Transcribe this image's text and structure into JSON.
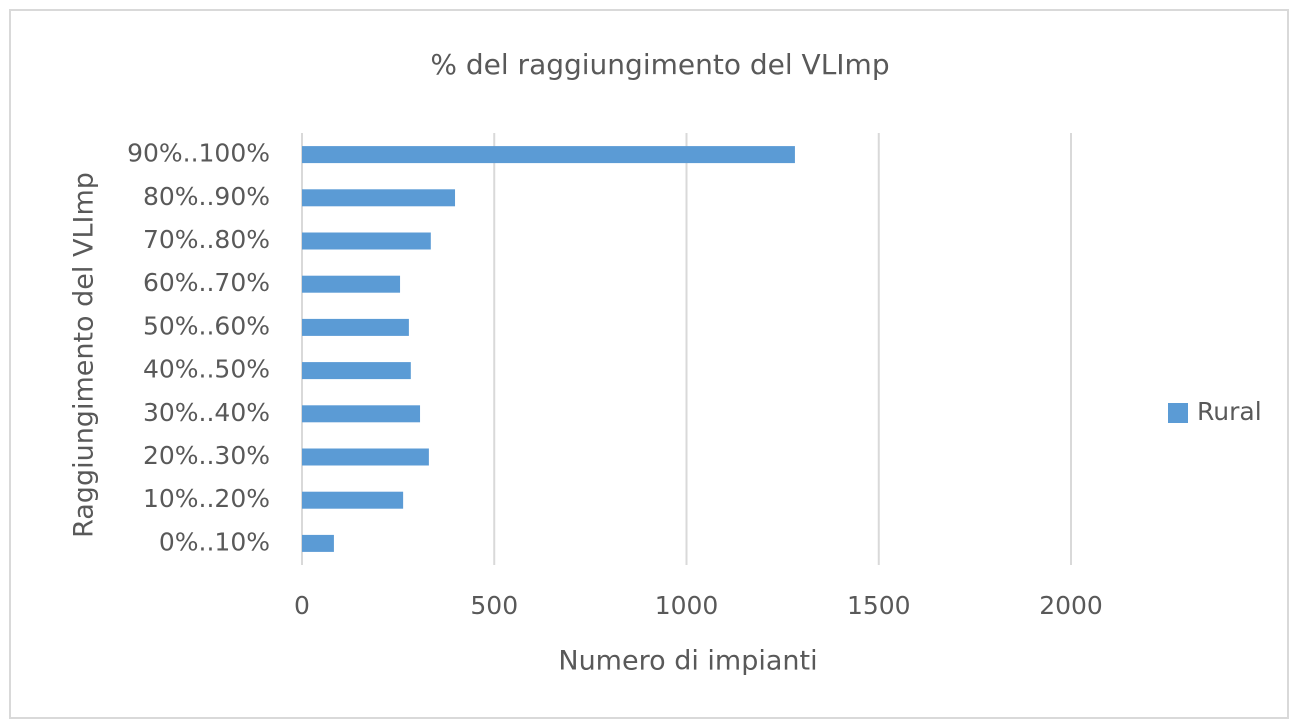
{
  "chart_data": {
    "type": "bar",
    "orientation": "horizontal",
    "title": "% del raggiungimento del VLImp",
    "x_label": "Numero di impianti",
    "y_label": "Raggiungimento del VLImp",
    "categories": [
      "0%..10%",
      "10%..20%",
      "20%..30%",
      "30%..40%",
      "40%..50%",
      "50%..60%",
      "60%..70%",
      "70%..80%",
      "80%..90%",
      "90%..100%"
    ],
    "series": [
      {
        "name": "Rural",
        "color": "#5b9bd5",
        "values": [
          83,
          263,
          330,
          307,
          283,
          278,
          255,
          335,
          398,
          1282
        ]
      }
    ],
    "xlim": [
      0,
      2000
    ],
    "xticks": [
      0,
      500,
      1000,
      1500,
      2000
    ],
    "grid": true,
    "legend": "right"
  }
}
